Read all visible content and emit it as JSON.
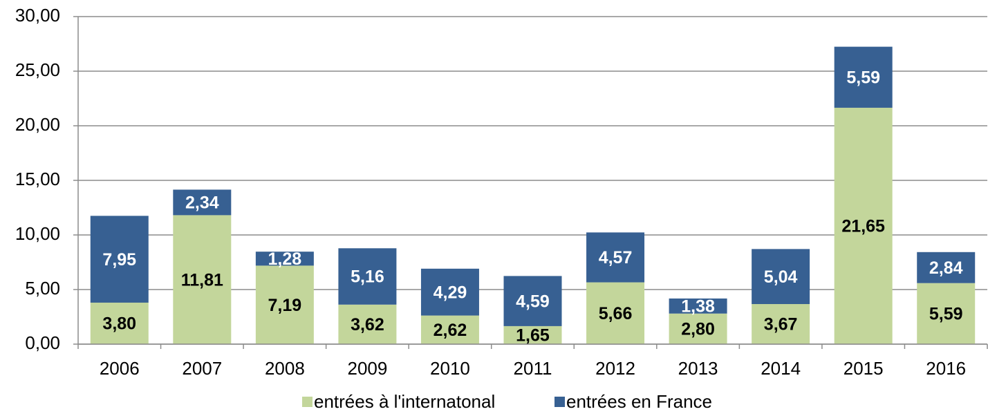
{
  "chart_data": {
    "type": "stacked-bar",
    "categories": [
      "2006",
      "2007",
      "2008",
      "2009",
      "2010",
      "2011",
      "2012",
      "2013",
      "2014",
      "2015",
      "2016"
    ],
    "series": [
      {
        "name": "entrées à l'internatonal",
        "color": "#c3d69b",
        "label_color": "#000000",
        "values": [
          3.8,
          11.81,
          7.19,
          3.62,
          2.62,
          1.65,
          5.66,
          2.8,
          3.67,
          21.65,
          5.59
        ],
        "value_labels": [
          "3,80",
          "11,81",
          "7,19",
          "3,62",
          "2,62",
          "1,65",
          "5,66",
          "2,80",
          "3,67",
          "21,65",
          "5,59"
        ]
      },
      {
        "name": "entrées en France",
        "color": "#376092",
        "label_color": "#ffffff",
        "values": [
          7.95,
          2.34,
          1.28,
          5.16,
          4.29,
          4.59,
          4.57,
          1.38,
          5.04,
          5.59,
          2.84
        ],
        "value_labels": [
          "7,95",
          "2,34",
          "1,28",
          "5,16",
          "4,29",
          "4,59",
          "4,57",
          "1,38",
          "5,04",
          "5,59",
          "2,84"
        ]
      }
    ],
    "ylim": [
      0,
      30
    ],
    "yticks": [
      {
        "value": 0,
        "label": "0,00"
      },
      {
        "value": 5,
        "label": "5,00"
      },
      {
        "value": 10,
        "label": "10,00"
      },
      {
        "value": 15,
        "label": "15,00"
      },
      {
        "value": 20,
        "label": "20,00"
      },
      {
        "value": 25,
        "label": "25,00"
      },
      {
        "value": 30,
        "label": "30,00"
      }
    ],
    "grid": true,
    "legend": "bottom"
  }
}
